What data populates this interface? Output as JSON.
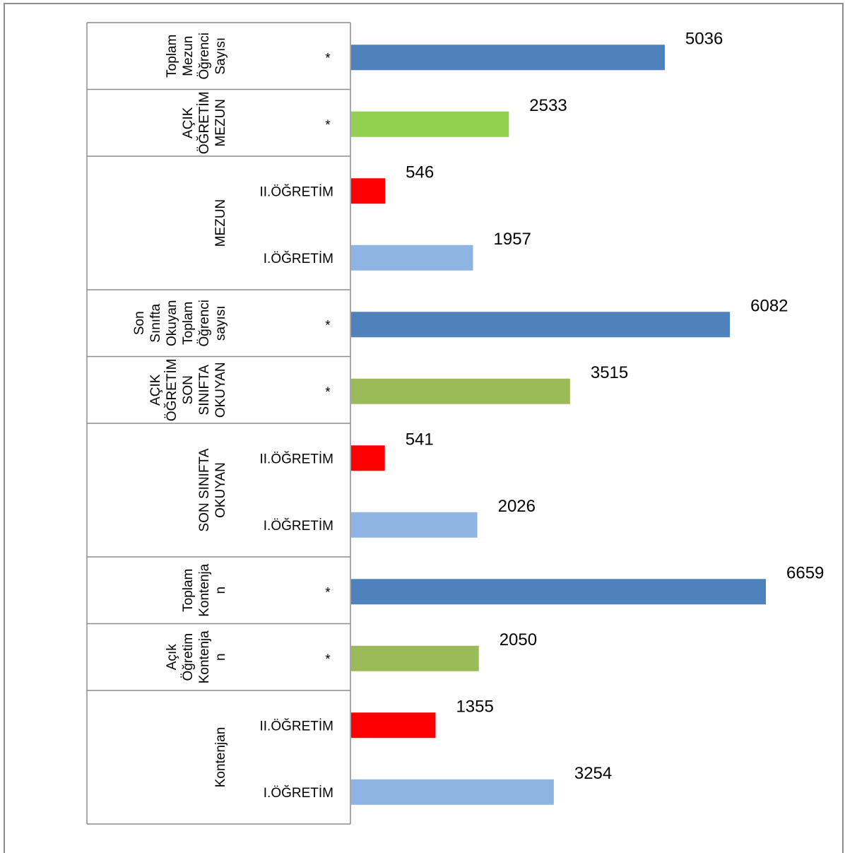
{
  "chart_data": {
    "type": "bar",
    "orientation": "horizontal",
    "title": "",
    "xlabel": "",
    "ylabel": "",
    "xlim": [
      0,
      7000
    ],
    "legend": "none",
    "grid": false,
    "colors": {
      "total": "#4f81bd",
      "open_green_light": "#92d050",
      "open_green": "#9bbb59",
      "second": "#ff0000",
      "first": "#8eb4e3"
    },
    "groups": [
      {
        "label": "Toplam Mezun Öğrenci Sayısı",
        "lines": [
          "Toplam",
          "Mezun",
          "Öğrenci",
          "Sayısı"
        ],
        "bars": [
          {
            "category": "*",
            "value": 5036,
            "color_key": "total"
          }
        ]
      },
      {
        "label": "AÇIK ÖĞRETİM MEZUN",
        "lines": [
          "AÇIK",
          "ÖĞRETİM",
          "MEZUN"
        ],
        "bars": [
          {
            "category": "*",
            "value": 2533,
            "color_key": "open_green_light"
          }
        ]
      },
      {
        "label": "MEZUN",
        "lines": [
          "MEZUN"
        ],
        "bars": [
          {
            "category": "II.ÖĞRETİM",
            "value": 546,
            "color_key": "second"
          },
          {
            "category": "I.ÖĞRETİM",
            "value": 1957,
            "color_key": "first"
          }
        ]
      },
      {
        "label": "Son Sınıfta Okuyan Toplam Öğrenci sayısı",
        "lines": [
          "Son",
          "Sınıfta",
          "Okuyan",
          "Toplam",
          "Öğrenci",
          "sayısı"
        ],
        "bars": [
          {
            "category": "*",
            "value": 6082,
            "color_key": "total"
          }
        ]
      },
      {
        "label": "AÇIK ÖĞRETİM SON SINIFTA OKUYAN",
        "lines": [
          "AÇIK",
          "ÖĞRETİM",
          "SON",
          "SINIFTA",
          "OKUYAN"
        ],
        "bars": [
          {
            "category": "*",
            "value": 3515,
            "color_key": "open_green"
          }
        ]
      },
      {
        "label": "SON SINIFTA OKUYAN",
        "lines": [
          "SON SINIFTA",
          "OKUYAN"
        ],
        "bars": [
          {
            "category": "II.ÖĞRETİM",
            "value": 541,
            "color_key": "second"
          },
          {
            "category": "I.ÖĞRETİM",
            "value": 2026,
            "color_key": "first"
          }
        ]
      },
      {
        "label": "Toplam Kontenjan",
        "lines": [
          "Toplam",
          "Kontenja",
          "n"
        ],
        "bars": [
          {
            "category": "*",
            "value": 6659,
            "color_key": "total"
          }
        ]
      },
      {
        "label": "Açık Öğretim Kontenjan",
        "lines": [
          "Açık",
          "Öğretim",
          "Kontenja",
          "n"
        ],
        "bars": [
          {
            "category": "*",
            "value": 2050,
            "color_key": "open_green"
          }
        ]
      },
      {
        "label": "Kontenjan",
        "lines": [
          "Kontenjan"
        ],
        "bars": [
          {
            "category": "II.ÖĞRETİM",
            "value": 1355,
            "color_key": "second"
          },
          {
            "category": "I.ÖĞRETİM",
            "value": 3254,
            "color_key": "first"
          }
        ]
      }
    ]
  }
}
